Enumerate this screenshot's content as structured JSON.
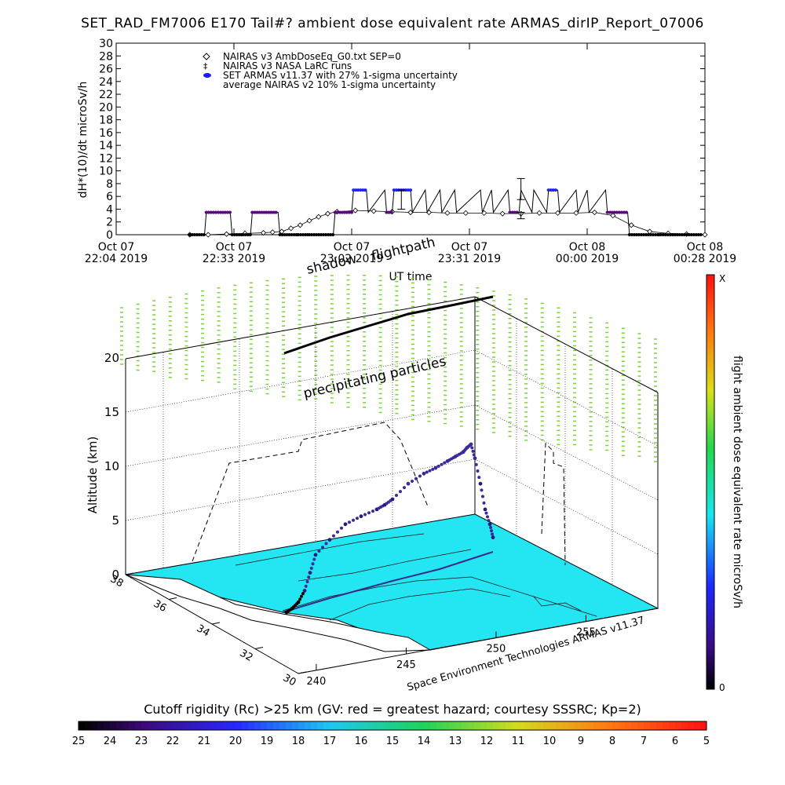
{
  "title": "SET_RAD_FM7006  E170 Tail#? ambient dose equivalent rate ARMAS_dirIP_Report_07006",
  "colors": {
    "nairas_v3": "#000000",
    "set_armas": "#3b2a9a",
    "nairas_avg": "#4a0d6a",
    "ground": "#23e6f2",
    "grid_dots": "#7ad23a",
    "coast": "#000000"
  },
  "chart_data": [
    {
      "type": "line",
      "ylabel": "dH*(10)/dt microSv/h",
      "xlabel": "UT time",
      "ylim": [
        0,
        30
      ],
      "yticks": [
        0,
        2,
        4,
        6,
        8,
        10,
        12,
        14,
        16,
        18,
        20,
        22,
        24,
        26,
        28,
        30
      ],
      "xticks": [
        {
          "line1": "Oct 07",
          "line2": "22:04 2019"
        },
        {
          "line1": "Oct 07",
          "line2": "22:33 2019"
        },
        {
          "line1": "Oct 07",
          "line2": "23:02 2019"
        },
        {
          "line1": "Oct 07",
          "line2": "23:31 2019"
        },
        {
          "line1": "Oct 08",
          "line2": "00:00 2019"
        },
        {
          "line1": "Oct 08",
          "line2": "00:28 2019"
        }
      ],
      "legend": [
        {
          "symbol": "◇",
          "label": "NAIRAS v3 AmbDoseEq_G0.txt SEP=0"
        },
        {
          "symbol": "‡",
          "label": "NAIRAS v3 NASA LaRC runs"
        },
        {
          "symbol": "●",
          "label": "SET ARMAS v11.37 with 27% 1-sigma uncertainty"
        },
        {
          "symbol": "",
          "label": "average NAIRAS v2 10% 1-sigma uncertainty"
        }
      ],
      "series": [
        {
          "name": "NAIRAS v3 AmbDoseEq_G0.txt SEP=0",
          "x_minutes": [
            40,
            50,
            60,
            70,
            80,
            85,
            90,
            95,
            100,
            105,
            110,
            115,
            120,
            130,
            140,
            150,
            160,
            170,
            180,
            190,
            200,
            210,
            220,
            230,
            240,
            250,
            260,
            270,
            280,
            290,
            300,
            310,
            320
          ],
          "values": [
            0,
            0,
            0.1,
            0.2,
            0.3,
            0.4,
            0.5,
            1.0,
            1.5,
            2.2,
            2.8,
            3.3,
            3.6,
            3.8,
            3.7,
            3.6,
            3.5,
            3.5,
            3.4,
            3.4,
            3.4,
            3.3,
            3.3,
            3.4,
            3.4,
            3.4,
            3.5,
            3.0,
            1.5,
            0.5,
            0.2,
            0.1,
            0
          ]
        },
        {
          "name": "SET ARMAS v11.37 with 27% 1-sigma uncertainty",
          "x_minutes": [
            40,
            48,
            49,
            62,
            63,
            68,
            69,
            73,
            74,
            88,
            89,
            98,
            99,
            104,
            105,
            118,
            119,
            128,
            129,
            136,
            137,
            146,
            147,
            150,
            151,
            160,
            161,
            168,
            169,
            176,
            177,
            184,
            185,
            198,
            199,
            204,
            205,
            213,
            214,
            219,
            220,
            226,
            227,
            234,
            235,
            240,
            241,
            250,
            251,
            256,
            257,
            266,
            267,
            278,
            279,
            295,
            296,
            318
          ],
          "values": [
            0,
            0,
            3.5,
            3.5,
            0,
            0,
            0,
            0,
            3.5,
            3.5,
            0,
            0,
            0,
            0,
            0,
            0,
            3.5,
            3.5,
            7,
            7,
            3.5,
            7,
            3.5,
            3.5,
            7,
            7,
            3.5,
            7,
            3.5,
            7,
            3.5,
            7,
            3.5,
            7,
            3.5,
            7,
            3.5,
            7,
            3.5,
            3.5,
            7,
            3.5,
            7,
            3.5,
            7,
            7,
            3.5,
            7,
            3.5,
            7,
            3.5,
            7,
            3.5,
            3.5,
            0,
            0,
            0,
            0
          ]
        }
      ],
      "error_bars": [
        {
          "x_minutes": 155,
          "value": 5.5,
          "low": 4.0,
          "high": 7.0
        },
        {
          "x_minutes": 220,
          "value": 7.0,
          "low": 5.5,
          "high": 8.8
        },
        {
          "x_minutes": 220,
          "value": 3.0,
          "low": 2.5,
          "high": 3.5
        }
      ]
    },
    {
      "type": "scatter",
      "zlabel": "Altitude (km)",
      "zticks": [
        0,
        5,
        10,
        15,
        20
      ],
      "lat_ticks": [
        30,
        32,
        34,
        36,
        38
      ],
      "lon_ticks": [
        240,
        245,
        250,
        255
      ],
      "annotations": [
        "shadow",
        "flightpath",
        "precipitating particles"
      ],
      "credit": "Space Environment Technologies ARMAS v11.37",
      "colorbar_label": "flight ambient dose equivalent rate microSv/h",
      "colorbar_top": "X",
      "colorbar_bottom": "0",
      "flight_altitude_km": [
        0,
        0.2,
        0.6,
        1.5,
        3,
        4.5,
        5.5,
        6.5,
        6.8,
        7,
        7.2,
        7.5,
        8.5,
        9.0,
        9.2,
        9.5,
        9.7,
        9.9,
        10.2,
        10.4,
        9.0,
        6.5,
        4.0,
        2.5,
        1.2
      ]
    }
  ],
  "colorbar": {
    "title": "Cutoff rigidity (Rc) >25 km (GV: red = greatest hazard; courtesy SSSRC; Kp=2)",
    "ticks": [
      "25",
      "24",
      "23",
      "22",
      "21",
      "20",
      "19",
      "18",
      "17",
      "16",
      "15",
      "14",
      "13",
      "12",
      "11",
      "10",
      "9",
      "8",
      "7",
      "6",
      "5"
    ]
  }
}
